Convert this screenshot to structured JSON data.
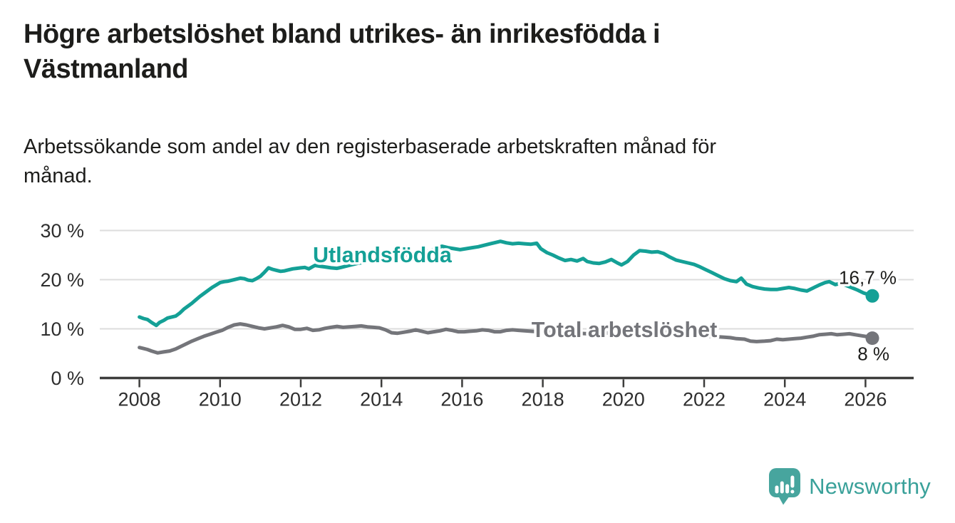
{
  "header": {
    "title": "Högre arbetslöshet bland utrikes- än inrikesfödda i Västmanland",
    "subtitle": "Arbetssökande som andel av den registerbaserade arbetskraften månad för månad."
  },
  "chart_data": {
    "type": "line",
    "grid": "horizontal",
    "xlim": [
      2007.0,
      2027.2
    ],
    "ylim": [
      0,
      32
    ],
    "x_axis": {
      "ticks": [
        2008,
        2010,
        2012,
        2014,
        2016,
        2018,
        2020,
        2022,
        2024,
        2026
      ],
      "tick_labels": [
        "2008",
        "2010",
        "2012",
        "2014",
        "2016",
        "2018",
        "2020",
        "2022",
        "2024",
        "2026"
      ]
    },
    "y_axis": {
      "ticks": [
        0,
        10,
        20,
        30
      ],
      "tick_labels": [
        "0 %",
        "10 %",
        "20 %",
        "30 %"
      ],
      "unit": "%"
    },
    "colors": {
      "grid": "#dcdcdc",
      "axis": "#3d3d3c",
      "tick_text": "#2e2e2e",
      "annotation_text": "#1d1d1b"
    },
    "series": [
      {
        "id": "total",
        "label": "Total arbetslöshet",
        "color": "#74757a",
        "end_label": "8 %",
        "end_label_position": "below",
        "label_anchor": [
          2017.72,
          8.35
        ],
        "points": [
          [
            2008.0,
            6.2
          ],
          [
            2008.1,
            6.0
          ],
          [
            2008.2,
            5.8
          ],
          [
            2008.3,
            5.5
          ],
          [
            2008.45,
            5.1
          ],
          [
            2008.6,
            5.3
          ],
          [
            2008.75,
            5.5
          ],
          [
            2008.9,
            5.9
          ],
          [
            2009.0,
            6.3
          ],
          [
            2009.15,
            6.9
          ],
          [
            2009.3,
            7.5
          ],
          [
            2009.45,
            8.0
          ],
          [
            2009.6,
            8.5
          ],
          [
            2009.75,
            8.9
          ],
          [
            2009.9,
            9.3
          ],
          [
            2010.05,
            9.7
          ],
          [
            2010.2,
            10.3
          ],
          [
            2010.35,
            10.8
          ],
          [
            2010.5,
            11.0
          ],
          [
            2010.65,
            10.8
          ],
          [
            2010.8,
            10.5
          ],
          [
            2010.95,
            10.2
          ],
          [
            2011.1,
            10.0
          ],
          [
            2011.25,
            10.2
          ],
          [
            2011.4,
            10.4
          ],
          [
            2011.55,
            10.7
          ],
          [
            2011.7,
            10.4
          ],
          [
            2011.85,
            9.9
          ],
          [
            2012.0,
            9.9
          ],
          [
            2012.15,
            10.1
          ],
          [
            2012.3,
            9.7
          ],
          [
            2012.45,
            9.8
          ],
          [
            2012.6,
            10.1
          ],
          [
            2012.75,
            10.3
          ],
          [
            2012.9,
            10.5
          ],
          [
            2013.05,
            10.3
          ],
          [
            2013.2,
            10.4
          ],
          [
            2013.35,
            10.5
          ],
          [
            2013.5,
            10.6
          ],
          [
            2013.65,
            10.4
          ],
          [
            2013.8,
            10.3
          ],
          [
            2013.95,
            10.2
          ],
          [
            2014.1,
            9.8
          ],
          [
            2014.25,
            9.2
          ],
          [
            2014.4,
            9.1
          ],
          [
            2014.55,
            9.3
          ],
          [
            2014.7,
            9.5
          ],
          [
            2014.85,
            9.8
          ],
          [
            2015.0,
            9.5
          ],
          [
            2015.15,
            9.2
          ],
          [
            2015.3,
            9.4
          ],
          [
            2015.45,
            9.6
          ],
          [
            2015.6,
            9.9
          ],
          [
            2015.75,
            9.7
          ],
          [
            2015.9,
            9.4
          ],
          [
            2016.05,
            9.4
          ],
          [
            2016.2,
            9.5
          ],
          [
            2016.35,
            9.6
          ],
          [
            2016.5,
            9.8
          ],
          [
            2016.65,
            9.7
          ],
          [
            2016.8,
            9.4
          ],
          [
            2016.95,
            9.4
          ],
          [
            2017.1,
            9.7
          ],
          [
            2017.25,
            9.8
          ],
          [
            2017.4,
            9.7
          ],
          [
            2017.55,
            9.6
          ],
          [
            2017.7,
            9.5
          ],
          [
            2017.9,
            9.4
          ],
          [
            2018.1,
            9.3
          ],
          [
            2018.3,
            9.4
          ],
          [
            2018.5,
            9.3
          ],
          [
            2018.7,
            9.2
          ],
          [
            2018.9,
            9.1
          ],
          [
            2019.1,
            9.0
          ],
          [
            2019.3,
            9.0
          ],
          [
            2019.5,
            9.1
          ],
          [
            2019.7,
            9.2
          ],
          [
            2019.9,
            9.3
          ],
          [
            2020.1,
            9.6
          ],
          [
            2020.3,
            9.9
          ],
          [
            2020.5,
            10.0
          ],
          [
            2020.7,
            9.9
          ],
          [
            2020.9,
            9.7
          ],
          [
            2021.1,
            9.5
          ],
          [
            2021.3,
            9.3
          ],
          [
            2021.5,
            9.1
          ],
          [
            2021.7,
            8.9
          ],
          [
            2021.9,
            8.7
          ],
          [
            2022.1,
            8.5
          ],
          [
            2022.3,
            8.4
          ],
          [
            2022.5,
            8.3
          ],
          [
            2022.65,
            8.2
          ],
          [
            2022.8,
            8.0
          ],
          [
            2023.0,
            7.9
          ],
          [
            2023.15,
            7.5
          ],
          [
            2023.3,
            7.4
          ],
          [
            2023.5,
            7.5
          ],
          [
            2023.65,
            7.6
          ],
          [
            2023.8,
            7.9
          ],
          [
            2023.95,
            7.8
          ],
          [
            2024.1,
            7.9
          ],
          [
            2024.25,
            8.0
          ],
          [
            2024.4,
            8.1
          ],
          [
            2024.55,
            8.3
          ],
          [
            2024.7,
            8.5
          ],
          [
            2024.85,
            8.8
          ],
          [
            2025.0,
            8.9
          ],
          [
            2025.15,
            9.0
          ],
          [
            2025.3,
            8.8
          ],
          [
            2025.45,
            8.9
          ],
          [
            2025.6,
            9.0
          ],
          [
            2025.75,
            8.8
          ],
          [
            2025.9,
            8.6
          ],
          [
            2026.05,
            8.4
          ],
          [
            2026.17,
            8.1
          ]
        ]
      },
      {
        "id": "utlandsfodda",
        "label": "Utlandsfödda",
        "color": "#14a096",
        "end_label": "16,7 %",
        "end_label_position": "above",
        "label_anchor": [
          2012.3,
          23.55
        ],
        "points": [
          [
            2008.0,
            12.4
          ],
          [
            2008.1,
            12.1
          ],
          [
            2008.2,
            11.9
          ],
          [
            2008.3,
            11.3
          ],
          [
            2008.42,
            10.7
          ],
          [
            2008.5,
            11.3
          ],
          [
            2008.6,
            11.7
          ],
          [
            2008.7,
            12.2
          ],
          [
            2008.8,
            12.4
          ],
          [
            2008.9,
            12.6
          ],
          [
            2009.0,
            13.2
          ],
          [
            2009.1,
            14.0
          ],
          [
            2009.2,
            14.6
          ],
          [
            2009.3,
            15.2
          ],
          [
            2009.4,
            15.9
          ],
          [
            2009.5,
            16.6
          ],
          [
            2009.6,
            17.2
          ],
          [
            2009.7,
            17.8
          ],
          [
            2009.8,
            18.4
          ],
          [
            2009.9,
            18.9
          ],
          [
            2010.0,
            19.4
          ],
          [
            2010.1,
            19.6
          ],
          [
            2010.2,
            19.7
          ],
          [
            2010.3,
            19.9
          ],
          [
            2010.4,
            20.1
          ],
          [
            2010.5,
            20.3
          ],
          [
            2010.6,
            20.2
          ],
          [
            2010.7,
            19.9
          ],
          [
            2010.8,
            19.8
          ],
          [
            2010.9,
            20.2
          ],
          [
            2011.0,
            20.7
          ],
          [
            2011.1,
            21.5
          ],
          [
            2011.2,
            22.4
          ],
          [
            2011.3,
            22.1
          ],
          [
            2011.4,
            21.9
          ],
          [
            2011.5,
            21.7
          ],
          [
            2011.6,
            21.8
          ],
          [
            2011.7,
            22.0
          ],
          [
            2011.8,
            22.2
          ],
          [
            2011.9,
            22.3
          ],
          [
            2012.0,
            22.4
          ],
          [
            2012.1,
            22.5
          ],
          [
            2012.2,
            22.2
          ],
          [
            2012.35,
            22.9
          ],
          [
            2012.5,
            22.7
          ],
          [
            2012.6,
            22.6
          ],
          [
            2012.75,
            22.4
          ],
          [
            2012.9,
            22.3
          ],
          [
            2013.0,
            22.5
          ],
          [
            2013.2,
            22.9
          ],
          [
            2013.4,
            23.3
          ],
          [
            2013.6,
            23.6
          ],
          [
            2013.8,
            23.9
          ],
          [
            2014.0,
            24.2
          ],
          [
            2014.2,
            24.5
          ],
          [
            2014.4,
            24.8
          ],
          [
            2014.6,
            25.0
          ],
          [
            2014.8,
            25.2
          ],
          [
            2015.0,
            25.5
          ],
          [
            2015.2,
            25.9
          ],
          [
            2015.35,
            26.3
          ],
          [
            2015.5,
            26.8
          ],
          [
            2015.65,
            26.5
          ],
          [
            2015.8,
            26.3
          ],
          [
            2015.95,
            26.1
          ],
          [
            2016.1,
            26.3
          ],
          [
            2016.25,
            26.5
          ],
          [
            2016.4,
            26.7
          ],
          [
            2016.55,
            27.0
          ],
          [
            2016.7,
            27.3
          ],
          [
            2016.85,
            27.6
          ],
          [
            2016.95,
            27.8
          ],
          [
            2017.1,
            27.5
          ],
          [
            2017.25,
            27.3
          ],
          [
            2017.4,
            27.4
          ],
          [
            2017.55,
            27.3
          ],
          [
            2017.7,
            27.2
          ],
          [
            2017.85,
            27.4
          ],
          [
            2017.95,
            26.3
          ],
          [
            2018.1,
            25.5
          ],
          [
            2018.25,
            25.0
          ],
          [
            2018.4,
            24.4
          ],
          [
            2018.55,
            23.9
          ],
          [
            2018.7,
            24.1
          ],
          [
            2018.85,
            23.8
          ],
          [
            2019.0,
            24.3
          ],
          [
            2019.1,
            23.7
          ],
          [
            2019.25,
            23.4
          ],
          [
            2019.4,
            23.3
          ],
          [
            2019.55,
            23.6
          ],
          [
            2019.7,
            24.1
          ],
          [
            2019.85,
            23.4
          ],
          [
            2019.95,
            23.0
          ],
          [
            2020.1,
            23.7
          ],
          [
            2020.25,
            25.0
          ],
          [
            2020.4,
            25.9
          ],
          [
            2020.55,
            25.8
          ],
          [
            2020.7,
            25.6
          ],
          [
            2020.85,
            25.7
          ],
          [
            2021.0,
            25.3
          ],
          [
            2021.15,
            24.6
          ],
          [
            2021.3,
            24.0
          ],
          [
            2021.45,
            23.7
          ],
          [
            2021.6,
            23.4
          ],
          [
            2021.75,
            23.1
          ],
          [
            2021.9,
            22.6
          ],
          [
            2022.05,
            22.0
          ],
          [
            2022.2,
            21.4
          ],
          [
            2022.35,
            20.8
          ],
          [
            2022.5,
            20.2
          ],
          [
            2022.65,
            19.8
          ],
          [
            2022.8,
            19.6
          ],
          [
            2022.92,
            20.3
          ],
          [
            2023.05,
            19.1
          ],
          [
            2023.2,
            18.6
          ],
          [
            2023.35,
            18.3
          ],
          [
            2023.5,
            18.1
          ],
          [
            2023.65,
            18.0
          ],
          [
            2023.8,
            18.0
          ],
          [
            2023.95,
            18.2
          ],
          [
            2024.1,
            18.4
          ],
          [
            2024.25,
            18.2
          ],
          [
            2024.4,
            17.9
          ],
          [
            2024.55,
            17.7
          ],
          [
            2024.7,
            18.3
          ],
          [
            2024.85,
            18.9
          ],
          [
            2025.0,
            19.4
          ],
          [
            2025.1,
            19.6
          ],
          [
            2025.25,
            19.0
          ],
          [
            2025.4,
            19.3
          ],
          [
            2025.5,
            18.9
          ],
          [
            2025.65,
            18.4
          ],
          [
            2025.8,
            17.9
          ],
          [
            2025.95,
            17.3
          ],
          [
            2026.1,
            16.9
          ],
          [
            2026.17,
            16.7
          ]
        ]
      }
    ]
  },
  "footer": {
    "logo_text": "Newsworthy"
  }
}
